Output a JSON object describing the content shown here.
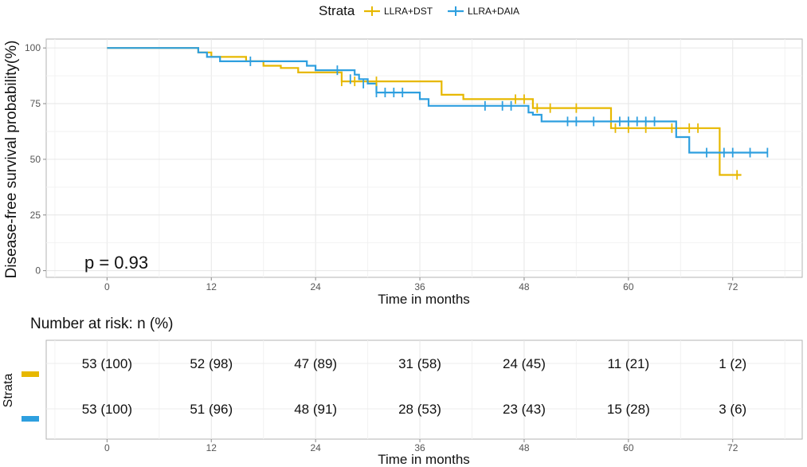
{
  "chart_data": [
    {
      "type": "line",
      "subtype": "kaplan-meier",
      "title": "",
      "legend": {
        "title": "Strata",
        "position": "top"
      },
      "xlabel": "Time in months",
      "ylabel": "Disease-free survival probability(%)",
      "xlim": [
        -7,
        80
      ],
      "ylim": [
        -3,
        104
      ],
      "xticks": [
        0,
        12,
        24,
        36,
        48,
        60,
        72
      ],
      "yticks": [
        0,
        25,
        50,
        75,
        100
      ],
      "grid": true,
      "annotation": "p = 0.93",
      "series": [
        {
          "name": "LLRA+DST",
          "color": "#E7B800",
          "steps": [
            [
              0,
              100
            ],
            [
              10,
              100
            ],
            [
              10.5,
              98
            ],
            [
              12,
              96
            ],
            [
              15,
              96
            ],
            [
              16,
              94
            ],
            [
              17,
              94
            ],
            [
              18,
              92
            ],
            [
              19,
              92
            ],
            [
              20,
              91
            ],
            [
              21,
              91
            ],
            [
              22,
              89
            ],
            [
              24,
              89
            ],
            [
              26,
              89
            ],
            [
              27,
              85
            ],
            [
              38,
              85
            ],
            [
              38.5,
              79
            ],
            [
              40,
              79
            ],
            [
              41,
              77
            ],
            [
              48,
              77
            ],
            [
              49,
              73
            ],
            [
              57,
              73
            ],
            [
              58,
              64
            ],
            [
              70,
              64
            ],
            [
              70.5,
              43
            ],
            [
              73,
              43
            ]
          ],
          "censor": [
            [
              27,
              85
            ],
            [
              28.5,
              85
            ],
            [
              31,
              85
            ],
            [
              47,
              77
            ],
            [
              48,
              77
            ],
            [
              49.5,
              73
            ],
            [
              51,
              73
            ],
            [
              54,
              73
            ],
            [
              58.5,
              64
            ],
            [
              60,
              64
            ],
            [
              62,
              64
            ],
            [
              65,
              64
            ],
            [
              67,
              64
            ],
            [
              68,
              64
            ],
            [
              72.5,
              43
            ]
          ]
        },
        {
          "name": "LLRA+DAIA",
          "color": "#2E9FDF",
          "steps": [
            [
              0,
              100
            ],
            [
              10,
              100
            ],
            [
              10.5,
              98
            ],
            [
              11.5,
              96
            ],
            [
              13,
              94
            ],
            [
              22,
              94
            ],
            [
              23,
              92
            ],
            [
              24,
              90
            ],
            [
              28,
              90
            ],
            [
              28.5,
              88
            ],
            [
              29,
              86
            ],
            [
              30,
              84
            ],
            [
              31,
              80
            ],
            [
              35,
              80
            ],
            [
              36,
              77
            ],
            [
              37,
              74
            ],
            [
              48,
              74
            ],
            [
              48.5,
              71
            ],
            [
              49,
              70
            ],
            [
              50,
              67
            ],
            [
              65,
              67
            ],
            [
              65.5,
              60
            ],
            [
              67,
              53
            ],
            [
              76,
              53
            ]
          ],
          "censor": [
            [
              16.5,
              94
            ],
            [
              26.5,
              90
            ],
            [
              28,
              86
            ],
            [
              29.5,
              84
            ],
            [
              31,
              80
            ],
            [
              32,
              80
            ],
            [
              33,
              80
            ],
            [
              34,
              80
            ],
            [
              43.5,
              74
            ],
            [
              45.5,
              74
            ],
            [
              46.5,
              74
            ],
            [
              53,
              67
            ],
            [
              54,
              67
            ],
            [
              56,
              67
            ],
            [
              59,
              67
            ],
            [
              60,
              67
            ],
            [
              61,
              67
            ],
            [
              62,
              67
            ],
            [
              63,
              67
            ],
            [
              69,
              53
            ],
            [
              71,
              53
            ],
            [
              72,
              53
            ],
            [
              74,
              53
            ],
            [
              76,
              53
            ]
          ]
        }
      ]
    },
    {
      "type": "table",
      "title": "Number at risk: n (%)",
      "xlabel": "Time in months",
      "ylabel": "Strata",
      "xticks": [
        0,
        12,
        24,
        36,
        48,
        60,
        72
      ],
      "rows": [
        {
          "name": "LLRA+DST",
          "color": "#E7B800",
          "cells": [
            "53 (100)",
            "52 (98)",
            "47 (89)",
            "31 (58)",
            "24 (45)",
            "11 (21)",
            "1 (2)"
          ]
        },
        {
          "name": "LLRA+DAIA",
          "color": "#2E9FDF",
          "cells": [
            "53 (100)",
            "51 (96)",
            "48 (91)",
            "28 (53)",
            "23 (43)",
            "15 (28)",
            "3 (6)"
          ]
        }
      ]
    }
  ]
}
